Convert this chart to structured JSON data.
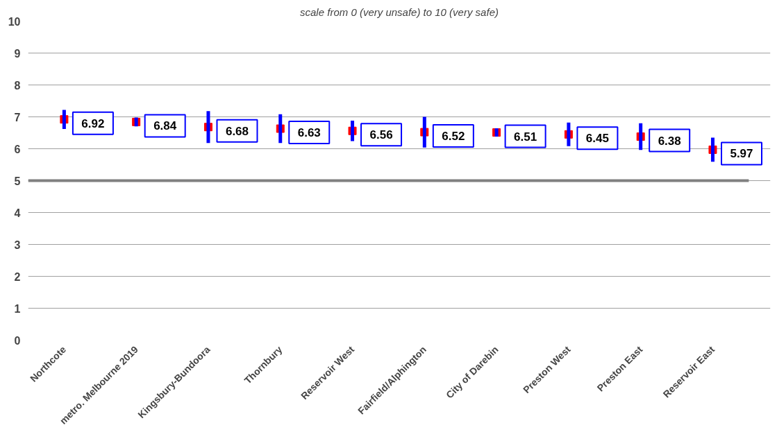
{
  "chart_data": {
    "type": "scatter",
    "title": "scale from 0 (very unsafe) to 10 (very safe)",
    "categories": [
      "Northcote",
      "metro. Melbourne 2019",
      "Kingsbury-Bundoora",
      "Thornbury",
      "Reservoir West",
      "Fairfield/Alphington",
      "City of Darebin",
      "Preston West",
      "Preston East",
      "Reservoir East"
    ],
    "series": [
      {
        "color": "#ff0000",
        "values": [
          6.92,
          6.84,
          6.68,
          6.63,
          6.56,
          6.52,
          6.51,
          6.45,
          6.38,
          5.97
        ],
        "errors": [
          0.3,
          0.14,
          0.5,
          0.45,
          0.32,
          0.48,
          0.13,
          0.37,
          0.42,
          0.38
        ]
      }
    ],
    "ylim": [
      0,
      10
    ],
    "yticks": [
      0,
      1,
      2,
      3,
      4,
      5,
      6,
      7,
      8,
      9,
      10
    ],
    "grid": "y",
    "marker": "square",
    "data_labels": true,
    "ref_lines": [
      {
        "axis": "y",
        "value": 5,
        "color": "#808080"
      }
    ]
  }
}
